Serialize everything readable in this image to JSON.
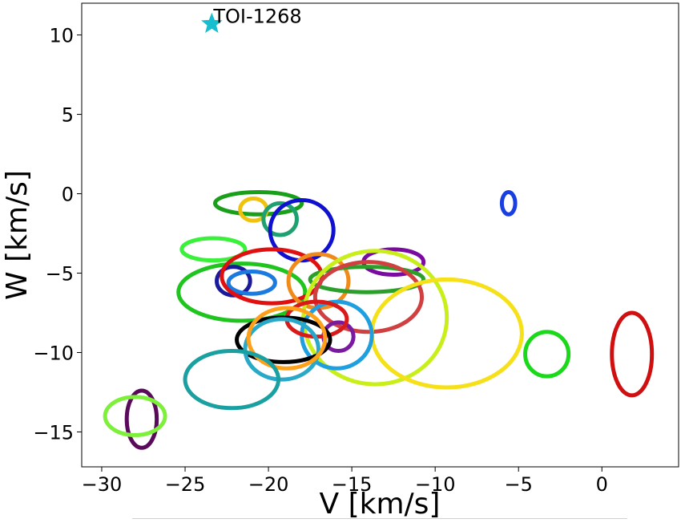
{
  "chart_data": {
    "type": "scatter",
    "xlabel": "V [km/s]",
    "ylabel": "W [km/s]",
    "xlim": [
      -31.2,
      4.6
    ],
    "ylim": [
      -17.2,
      12.0
    ],
    "xticks": [
      -30,
      -25,
      -20,
      -15,
      -10,
      -5,
      0
    ],
    "yticks": [
      -15,
      -10,
      -5,
      0,
      5,
      10
    ],
    "grid": false,
    "target": {
      "name": "TOI-1268",
      "x": -23.4,
      "y": 10.7,
      "color": "#17becf"
    },
    "ellipses": [
      {
        "cx": -20.6,
        "cy": -0.6,
        "rx": 2.6,
        "ry": 0.7,
        "color": "#1a9f1a"
      },
      {
        "cx": -20.9,
        "cy": -1.0,
        "rx": 0.8,
        "ry": 0.7,
        "color": "#f0c20d"
      },
      {
        "cx": -19.3,
        "cy": -1.6,
        "rx": 1.0,
        "ry": 1.0,
        "color": "#1fa070"
      },
      {
        "cx": -18.0,
        "cy": -2.3,
        "rx": 1.9,
        "ry": 1.9,
        "color": "#1010d0"
      },
      {
        "cx": -5.6,
        "cy": -0.6,
        "rx": 0.4,
        "ry": 0.7,
        "color": "#1a3fe0"
      },
      {
        "cx": -23.3,
        "cy": -3.5,
        "rx": 1.9,
        "ry": 0.7,
        "color": "#39f03a"
      },
      {
        "cx": -12.5,
        "cy": -4.3,
        "rx": 1.8,
        "ry": 0.8,
        "color": "#7a0aa0"
      },
      {
        "cx": -21.6,
        "cy": -6.2,
        "rx": 3.8,
        "ry": 1.8,
        "color": "#1fc41f"
      },
      {
        "cx": -22.1,
        "cy": -5.5,
        "rx": 1.0,
        "ry": 0.9,
        "color": "#1a1a9c"
      },
      {
        "cx": -21.0,
        "cy": -5.6,
        "rx": 1.4,
        "ry": 0.7,
        "color": "#1a7ae0"
      },
      {
        "cx": -19.8,
        "cy": -5.2,
        "rx": 3.0,
        "ry": 1.7,
        "color": "#e01010"
      },
      {
        "cx": -17.0,
        "cy": -5.5,
        "rx": 1.8,
        "ry": 1.7,
        "color": "#f08a1a"
      },
      {
        "cx": -14.1,
        "cy": -5.4,
        "rx": 3.4,
        "ry": 0.8,
        "color": "#2aa02a"
      },
      {
        "cx": -14.0,
        "cy": -6.5,
        "rx": 3.2,
        "ry": 2.2,
        "color": "#d04040"
      },
      {
        "cx": -13.6,
        "cy": -7.8,
        "rx": 4.3,
        "ry": 4.2,
        "color": "#c8ef1a"
      },
      {
        "cx": -9.3,
        "cy": -8.8,
        "rx": 4.5,
        "ry": 3.4,
        "color": "#f5e01a"
      },
      {
        "cx": -15.9,
        "cy": -8.9,
        "rx": 2.1,
        "ry": 2.1,
        "color": "#1f9fe0"
      },
      {
        "cx": -15.8,
        "cy": -9.0,
        "rx": 0.9,
        "ry": 0.9,
        "color": "#7a1aa0"
      },
      {
        "cx": -17.1,
        "cy": -7.9,
        "rx": 1.8,
        "ry": 1.1,
        "color": "#d91a1a"
      },
      {
        "cx": -19.1,
        "cy": -9.2,
        "rx": 2.8,
        "ry": 1.4,
        "color": "#000000"
      },
      {
        "cx": -19.2,
        "cy": -9.8,
        "rx": 2.2,
        "ry": 1.9,
        "color": "#2aa8c8"
      },
      {
        "cx": -18.9,
        "cy": -9.1,
        "rx": 2.3,
        "ry": 1.9,
        "color": "#ffa01a"
      },
      {
        "cx": -22.2,
        "cy": -11.7,
        "rx": 2.8,
        "ry": 1.8,
        "color": "#1aa0a0"
      },
      {
        "cx": -3.3,
        "cy": -10.1,
        "rx": 1.3,
        "ry": 1.4,
        "color": "#1ad81a"
      },
      {
        "cx": 1.8,
        "cy": -10.1,
        "rx": 1.2,
        "ry": 2.6,
        "color": "#d01010"
      },
      {
        "cx": -27.6,
        "cy": -14.2,
        "rx": 0.9,
        "ry": 1.8,
        "color": "#5a0a5a"
      },
      {
        "cx": -28.0,
        "cy": -14.0,
        "rx": 1.8,
        "ry": 1.2,
        "color": "#7df03a"
      }
    ]
  }
}
